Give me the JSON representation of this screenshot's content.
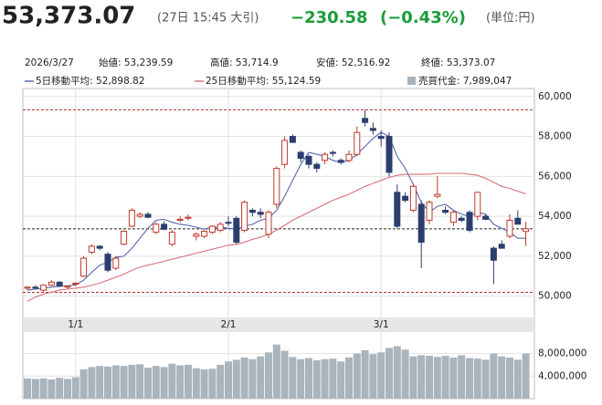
{
  "chart_data": {
    "type": "candlestick",
    "header": {
      "price": "53,373.07",
      "time": "(27日 15:45 大引)",
      "change": "−230.58",
      "change_pct": "(−0.43%)",
      "unit": "(単位:円)",
      "change_color": "#1a9c3a"
    },
    "summary": [
      "2026/3/27",
      "始値: 53,239.59",
      "高値: 53,714.9",
      "安値: 52,516.92",
      "終値: 53,373.07"
    ],
    "categories": [
      null,
      null,
      null,
      null,
      null,
      null,
      "1/1",
      null,
      null,
      null,
      null,
      null,
      null,
      null,
      null,
      null,
      null,
      null,
      null,
      null,
      null,
      null,
      null,
      null,
      null,
      "2/1",
      null,
      null,
      null,
      null,
      null,
      null,
      null,
      null,
      null,
      null,
      null,
      null,
      null,
      null,
      null,
      null,
      null,
      null,
      "3/1",
      null,
      null,
      null,
      null,
      null,
      null,
      null,
      null,
      null,
      null,
      null,
      null,
      null,
      null,
      null,
      null,
      null,
      null
    ],
    "candles": {
      "up_color": "#c0392b",
      "down_color": "#2c3e6e",
      "open": [
        50400,
        50450,
        50300,
        50550,
        50700,
        50450,
        50600,
        51000,
        52200,
        52500,
        52100,
        51400,
        52600,
        53500,
        54000,
        54100,
        53200,
        53600,
        52600,
        53800,
        53900,
        53000,
        53000,
        53200,
        53300,
        53700,
        53900,
        53300,
        54300,
        54200,
        53100,
        54600,
        56600,
        58000,
        57200,
        57000,
        56600,
        56800,
        57200,
        56800,
        56800,
        57100,
        58900,
        58400,
        58000,
        58000,
        55200,
        55000,
        54300,
        54600,
        53800,
        55000,
        54300,
        53700,
        53900,
        54200,
        54000,
        54000,
        52400,
        52600,
        53000,
        53900,
        53239.59
      ],
      "high": [
        50500,
        50550,
        50600,
        50800,
        50750,
        50550,
        50700,
        52000,
        52600,
        52550,
        52200,
        52000,
        53300,
        54400,
        54200,
        54200,
        53700,
        53750,
        53300,
        54000,
        54100,
        53200,
        53300,
        53550,
        53700,
        54000,
        54000,
        54800,
        54400,
        54400,
        54300,
        56500,
        58000,
        58100,
        57300,
        57100,
        56700,
        57200,
        57300,
        56900,
        57300,
        58500,
        59332,
        58700,
        58300,
        58200,
        55600,
        55200,
        55600,
        54800,
        54800,
        56000,
        54500,
        54300,
        54000,
        54300,
        55200,
        54100,
        52500,
        52800,
        54100,
        54300,
        53714.9
      ],
      "low": [
        50300,
        50380,
        50190,
        50500,
        50450,
        50350,
        50500,
        50950,
        52100,
        52300,
        51200,
        51300,
        52550,
        53450,
        53900,
        53900,
        53100,
        53300,
        52500,
        53700,
        53800,
        52800,
        52900,
        53100,
        53200,
        53500,
        52600,
        53200,
        54000,
        53900,
        52900,
        54400,
        56400,
        57700,
        56700,
        56400,
        56200,
        56600,
        57000,
        56600,
        56700,
        57000,
        58500,
        58100,
        57500,
        56000,
        53400,
        54700,
        54200,
        51400,
        53600,
        54900,
        54100,
        53500,
        53700,
        53200,
        53800,
        53800,
        50600,
        52400,
        52900,
        53600,
        52516.92
      ],
      "close": [
        50450,
        50400,
        50550,
        50700,
        50500,
        50500,
        50650,
        51900,
        52500,
        52400,
        51300,
        51900,
        53250,
        54300,
        54100,
        53950,
        53600,
        53350,
        53200,
        53850,
        53950,
        53100,
        53250,
        53500,
        53600,
        53650,
        52700,
        54700,
        54200,
        54100,
        54200,
        56400,
        57800,
        57700,
        56900,
        56600,
        56400,
        57100,
        57150,
        56700,
        57100,
        58200,
        58700,
        58300,
        57900,
        56200,
        53500,
        54800,
        55500,
        52700,
        54700,
        55100,
        54200,
        54200,
        53800,
        53300,
        55200,
        53850,
        51800,
        52400,
        53800,
        53603.65,
        53373.07
      ]
    },
    "series": [
      {
        "name": "5日移動平均: 52,898.82",
        "color": "#5567b0",
        "values": [
          50300,
          50350,
          50400,
          50450,
          50500,
          50520,
          50560,
          50800,
          51200,
          51550,
          51700,
          51950,
          52000,
          52400,
          52900,
          53400,
          53800,
          53850,
          53700,
          53600,
          53550,
          53450,
          53350,
          53450,
          53450,
          53400,
          53350,
          53500,
          53600,
          53800,
          53900,
          54300,
          55000,
          55800,
          56600,
          57200,
          57100,
          57000,
          56800,
          56700,
          56800,
          57100,
          57500,
          57900,
          58200,
          58000,
          57000,
          56400,
          55600,
          54700,
          54200,
          54500,
          54600,
          54300,
          54100,
          54000,
          54200,
          54100,
          53600,
          53400,
          53200,
          52900,
          52898.82
        ]
      },
      {
        "name": "25日移動平均: 55,124.59",
        "color": "#d9707a",
        "values": [
          49750,
          49950,
          50100,
          50200,
          50300,
          50350,
          50400,
          50450,
          50550,
          50650,
          50800,
          50950,
          51100,
          51300,
          51450,
          51550,
          51650,
          51750,
          51850,
          51950,
          52050,
          52150,
          52250,
          52350,
          52450,
          52550,
          52600,
          52700,
          52850,
          52950,
          53100,
          53300,
          53550,
          53800,
          54000,
          54200,
          54400,
          54600,
          54800,
          54950,
          55100,
          55300,
          55500,
          55650,
          55800,
          55950,
          56050,
          56100,
          56100,
          56100,
          56100,
          56150,
          56150,
          56150,
          56150,
          56100,
          56050,
          55900,
          55700,
          55500,
          55400,
          55250,
          55124.59
        ]
      }
    ],
    "reference_lines": [
      {
        "value": 59332,
        "color": "#b03030"
      },
      {
        "value": 50190,
        "color": "#b03030"
      },
      {
        "value": 53373.07,
        "color": "#222222"
      }
    ],
    "ylim": [
      49300,
      60400
    ],
    "yticks": [
      {
        "value": 50000,
        "label": "50,000"
      },
      {
        "value": 52000,
        "label": "52,000"
      },
      {
        "value": 54000,
        "label": "54,000"
      },
      {
        "value": 56000,
        "label": "56,000"
      },
      {
        "value": 58000,
        "label": "58,000"
      },
      {
        "value": 60000,
        "label": "60,000"
      }
    ],
    "volume": {
      "name": "売買代金: 7,989,047",
      "color": "#a9b4bd",
      "values": [
        3600000,
        3500000,
        3600000,
        3400000,
        3700000,
        3500000,
        3800000,
        5200000,
        5600000,
        5800000,
        5700000,
        5900000,
        5800000,
        6000000,
        6100000,
        5500000,
        5800000,
        5600000,
        6200000,
        5900000,
        6000000,
        5400000,
        5200000,
        5300000,
        6000000,
        6600000,
        6900000,
        7300000,
        7000000,
        7500000,
        8200000,
        9600000,
        8500000,
        7400000,
        7000000,
        7200000,
        6800000,
        7000000,
        7100000,
        6600000,
        7300000,
        8000000,
        8600000,
        7900000,
        8200000,
        9000000,
        9300000,
        8700000,
        7500000,
        7700000,
        7600000,
        7400000,
        7600000,
        7300000,
        7700000,
        7200000,
        7100000,
        6900000,
        8000000,
        7500000,
        7300000,
        6900000,
        7989047
      ],
      "ylim": [
        0,
        11500000
      ],
      "yticks": [
        {
          "value": 4000000,
          "label": "4,000,000"
        },
        {
          "value": 8000000,
          "label": "8,000,000"
        }
      ]
    },
    "grid": true
  }
}
